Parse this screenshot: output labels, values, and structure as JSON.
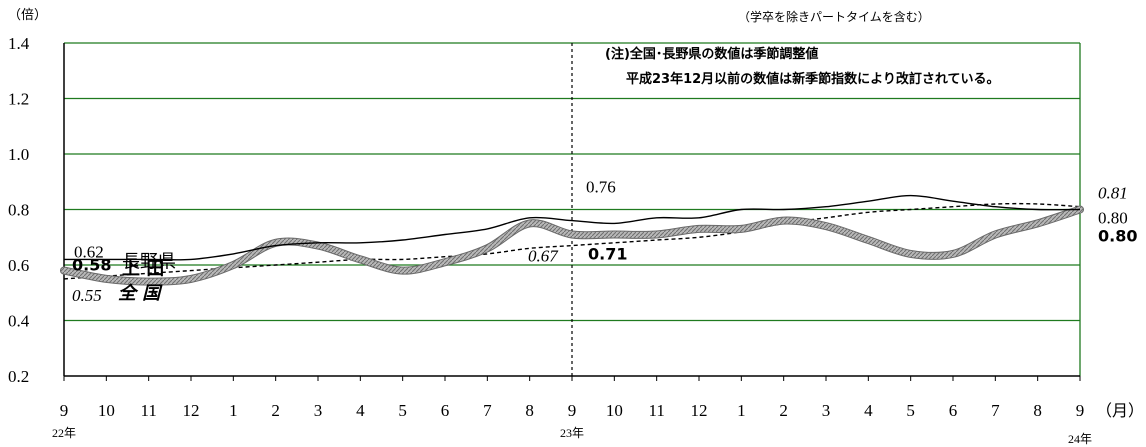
{
  "chart_data": {
    "type": "line",
    "y_unit_label": "（倍）",
    "x_unit_label": "（月）",
    "subtitle": "（学卒を除きパートタイムを含む）",
    "notes": [
      "(注)全国･長野県の数値は季節調整値",
      "平成23年12月以前の数値は新季節指数により改訂されている。"
    ],
    "ylim": [
      0.2,
      1.4
    ],
    "y_ticks": [
      "0.2",
      "0.4",
      "0.6",
      "0.8",
      "1.0",
      "1.2",
      "1.4"
    ],
    "grid": true,
    "categories": [
      "9",
      "10",
      "11",
      "12",
      "1",
      "2",
      "3",
      "4",
      "5",
      "6",
      "7",
      "8",
      "9",
      "10",
      "11",
      "12",
      "1",
      "2",
      "3",
      "4",
      "5",
      "6",
      "7",
      "8",
      "9"
    ],
    "year_labels": [
      {
        "index": 0,
        "text": "22年"
      },
      {
        "index": 12,
        "text": "23年"
      },
      {
        "index": 24,
        "text": "24年"
      }
    ],
    "divider_index": 12,
    "series": [
      {
        "name": "長野県",
        "color": "#000000",
        "style": "solid-thin",
        "values": [
          0.62,
          0.62,
          0.62,
          0.62,
          0.64,
          0.67,
          0.68,
          0.68,
          0.69,
          0.71,
          0.73,
          0.77,
          0.76,
          0.75,
          0.77,
          0.77,
          0.8,
          0.8,
          0.81,
          0.83,
          0.85,
          0.83,
          0.81,
          0.8,
          0.8
        ]
      },
      {
        "name": "上 田",
        "color": "#9a9a9a",
        "style": "thick-gray",
        "values": [
          0.58,
          0.55,
          0.54,
          0.55,
          0.6,
          0.68,
          0.67,
          0.62,
          0.58,
          0.61,
          0.66,
          0.75,
          0.71,
          0.71,
          0.71,
          0.73,
          0.73,
          0.76,
          0.74,
          0.69,
          0.64,
          0.64,
          0.71,
          0.75,
          0.8
        ]
      },
      {
        "name": "全 国",
        "color": "#000000",
        "style": "dashed",
        "values": [
          0.55,
          0.56,
          0.57,
          0.58,
          0.59,
          0.6,
          0.61,
          0.62,
          0.62,
          0.63,
          0.64,
          0.66,
          0.67,
          0.68,
          0.69,
          0.7,
          0.72,
          0.75,
          0.77,
          0.79,
          0.8,
          0.81,
          0.82,
          0.82,
          0.81
        ]
      }
    ],
    "annotations": [
      {
        "text": "0.62",
        "series": "長野県",
        "index": 0,
        "style": "serif"
      },
      {
        "text": "0.58",
        "series": "上 田",
        "index": 0,
        "style": "bold"
      },
      {
        "text": "0.55",
        "series": "全 国",
        "index": 0,
        "style": "italic"
      },
      {
        "text": "0.76",
        "series": "長野県",
        "index": 12,
        "style": "serif"
      },
      {
        "text": "0.67",
        "series": "全 国",
        "index": 12,
        "style": "italic"
      },
      {
        "text": "0.71",
        "series": "上 田",
        "index": 12,
        "style": "bold"
      },
      {
        "text": "0.81",
        "series": "全 国",
        "index": 24,
        "style": "italic"
      },
      {
        "text": "0.80",
        "series": "長野県",
        "index": 24,
        "style": "serif"
      },
      {
        "text": "0.80",
        "series": "上 田",
        "index": 24,
        "style": "bold"
      }
    ]
  }
}
